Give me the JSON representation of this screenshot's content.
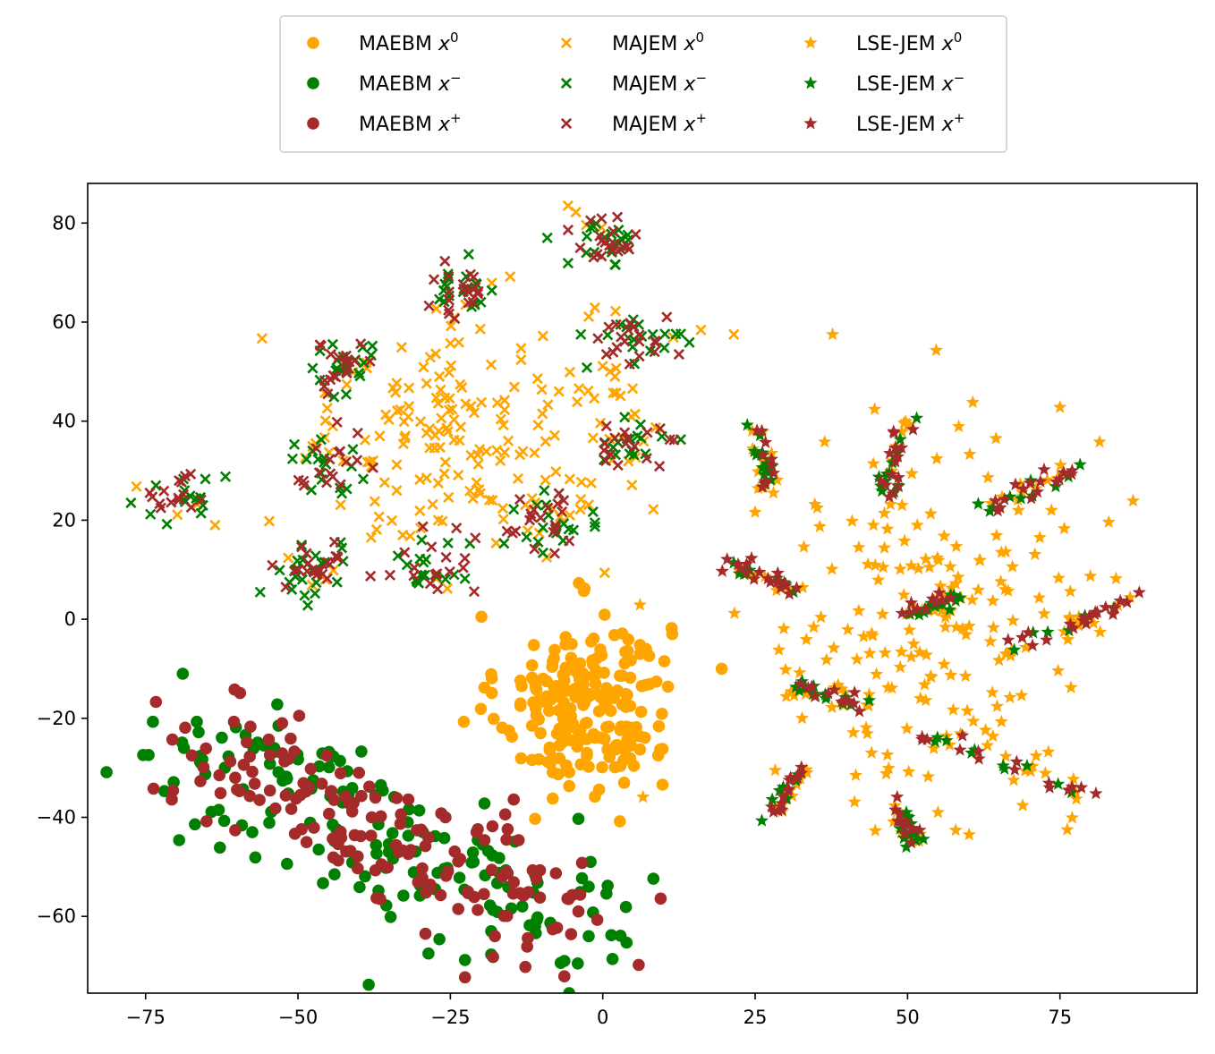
{
  "chart_data": {
    "type": "scatter",
    "title": "",
    "xlabel": "",
    "ylabel": "",
    "xlim": [
      -84.5,
      97.5
    ],
    "ylim": [
      -75.5,
      88
    ],
    "xticks": [
      -75,
      -50,
      -25,
      0,
      25,
      50,
      75
    ],
    "yticks": [
      -60,
      -40,
      -20,
      0,
      20,
      40,
      60,
      80
    ],
    "xtick_labels": [
      "−75",
      "−50",
      "−25",
      "0",
      "25",
      "50",
      "75"
    ],
    "ytick_labels": [
      "−60",
      "−40",
      "−20",
      "0",
      "20",
      "40",
      "60",
      "80"
    ],
    "grid": false,
    "legend_position": "top-center, outside plot, 3 columns",
    "colors": {
      "x0": "#ffa500",
      "xminus": "#008000",
      "xplus": "#a52a2a"
    },
    "series": [
      {
        "name": "MAEBM",
        "sup": "0",
        "marker": "circle",
        "color": "#ffa500",
        "points": []
      },
      {
        "name": "MAEBM",
        "sup": "−",
        "marker": "circle",
        "color": "#008000",
        "points": []
      },
      {
        "name": "MAEBM",
        "sup": "+",
        "marker": "circle",
        "color": "#a52a2a",
        "points": []
      },
      {
        "name": "MAJEM",
        "sup": "0",
        "marker": "x",
        "color": "#ffa500",
        "points": []
      },
      {
        "name": "MAJEM",
        "sup": "−",
        "marker": "x",
        "color": "#008000",
        "points": []
      },
      {
        "name": "MAJEM",
        "sup": "+",
        "marker": "x",
        "color": "#a52a2a",
        "points": []
      },
      {
        "name": "LSE-JEM",
        "sup": "0",
        "marker": "star",
        "color": "#ffa500",
        "points": []
      },
      {
        "name": "LSE-JEM",
        "sup": "−",
        "marker": "star",
        "color": "#008000",
        "points": []
      },
      {
        "name": "LSE-JEM",
        "sup": "+",
        "marker": "star",
        "color": "#a52a2a",
        "points": []
      }
    ],
    "clusters": {
      "maebm_x0": [
        {
          "c": [
            -3,
            -17
          ],
          "s": [
            7,
            9
          ],
          "n": 230
        }
      ],
      "maebm_pm": [
        {
          "a": [
            -65,
            -25
          ],
          "b": [
            -3,
            -64
          ],
          "w": 14,
          "n": 330
        }
      ],
      "majem_x0": [
        {
          "c": [
            -20,
            38
          ],
          "s": [
            14,
            11
          ],
          "n": 170
        }
      ],
      "majem_pm": [
        {
          "c": [
            -69,
            25
          ],
          "s": [
            3,
            2.5
          ],
          "n": 30
        },
        {
          "c": [
            -48,
            10
          ],
          "s": [
            3.5,
            3.5
          ],
          "n": 45
        },
        {
          "c": [
            -45,
            32
          ],
          "s": [
            3,
            3
          ],
          "n": 35
        },
        {
          "c": [
            -43,
            51
          ],
          "s": [
            3,
            3
          ],
          "n": 40
        },
        {
          "c": [
            -28,
            10
          ],
          "s": [
            3,
            3
          ],
          "n": 35
        },
        {
          "c": [
            -24,
            66
          ],
          "s": [
            3,
            3
          ],
          "n": 40
        },
        {
          "c": [
            -8,
            20
          ],
          "s": [
            3,
            3
          ],
          "n": 40
        },
        {
          "c": [
            0,
            76
          ],
          "s": [
            4,
            2.5
          ],
          "n": 40
        },
        {
          "c": [
            6,
            57
          ],
          "s": [
            4,
            2.5
          ],
          "n": 40
        },
        {
          "c": [
            5,
            36
          ],
          "s": [
            3,
            2.5
          ],
          "n": 35
        }
      ],
      "lse_x0": [
        {
          "c": [
            52,
            0
          ],
          "s": [
            15,
            22
          ],
          "n": 200
        }
      ],
      "lse_arms": [
        [
          25,
          39,
          27,
          26
        ],
        [
          21,
          11,
          31,
          6
        ],
        [
          26,
          -41,
          33,
          -30
        ],
        [
          31,
          -14,
          43,
          -17
        ],
        [
          50,
          41,
          46,
          25
        ],
        [
          62,
          22,
          79,
          31
        ],
        [
          50,
          1,
          58,
          5
        ],
        [
          65,
          -6,
          88,
          4
        ],
        [
          52,
          -23,
          80,
          -35
        ],
        [
          48,
          -37,
          52,
          -46
        ]
      ]
    }
  },
  "legend": {
    "items": [
      {
        "label": "MAEBM",
        "sup": "0",
        "marker": "circle",
        "color": "#ffa500"
      },
      {
        "label": "MAEBM",
        "sup": "−",
        "marker": "circle",
        "color": "#008000"
      },
      {
        "label": "MAEBM",
        "sup": "+",
        "marker": "circle",
        "color": "#a52a2a"
      },
      {
        "label": "MAJEM",
        "sup": "0",
        "marker": "x",
        "color": "#ffa500"
      },
      {
        "label": "MAJEM",
        "sup": "−",
        "marker": "x",
        "color": "#008000"
      },
      {
        "label": "MAJEM",
        "sup": "+",
        "marker": "x",
        "color": "#a52a2a"
      },
      {
        "label": "LSE-JEM",
        "sup": "0",
        "marker": "star",
        "color": "#ffa500"
      },
      {
        "label": "LSE-JEM",
        "sup": "−",
        "marker": "star",
        "color": "#008000"
      },
      {
        "label": "LSE-JEM",
        "sup": "+",
        "marker": "star",
        "color": "#a52a2a"
      }
    ]
  }
}
